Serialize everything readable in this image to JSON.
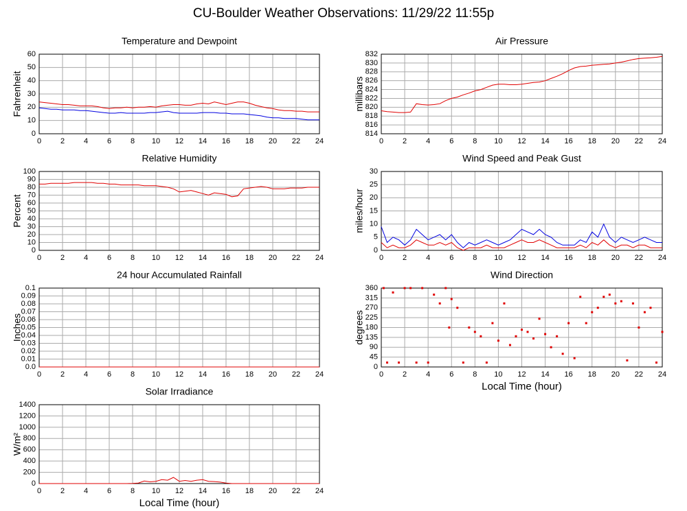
{
  "title": "CU-Boulder Weather Observations: 11/29/22 11:55p",
  "chart_data": [
    {
      "type": "line",
      "title": "Temperature and Dewpoint",
      "y_label": "Fahrenheit",
      "xlim": [
        0,
        24
      ],
      "xticks": [
        0,
        2,
        4,
        6,
        8,
        10,
        12,
        14,
        16,
        18,
        20,
        22,
        24
      ],
      "ylim": [
        0,
        60
      ],
      "yticks": [
        0,
        10,
        20,
        30,
        40,
        50,
        60
      ],
      "grid": true,
      "x": [
        0,
        0.5,
        1,
        1.5,
        2,
        2.5,
        3,
        3.5,
        4,
        4.5,
        5,
        5.5,
        6,
        6.5,
        7,
        7.5,
        8,
        8.5,
        9,
        9.5,
        10,
        10.5,
        11,
        11.5,
        12,
        12.5,
        13,
        13.5,
        14,
        14.5,
        15,
        15.5,
        16,
        16.5,
        17,
        17.5,
        18,
        18.5,
        19,
        19.5,
        20,
        20.5,
        21,
        21.5,
        22,
        22.5,
        23,
        23.5,
        24
      ],
      "series": [
        {
          "color": "#e00000",
          "values": [
            24,
            23.5,
            23,
            22.5,
            22,
            22,
            21.5,
            21,
            21,
            21,
            20.5,
            19.5,
            19,
            19.5,
            19.5,
            20,
            19.5,
            20,
            20,
            20.5,
            20,
            21,
            21.5,
            22,
            22,
            21.5,
            21.5,
            22.5,
            23,
            22.5,
            24,
            23,
            22,
            23,
            24,
            24,
            23,
            21.5,
            20.5,
            19.5,
            19,
            18,
            17.5,
            17.5,
            17,
            17,
            16.5,
            16.5,
            16.5
          ]
        },
        {
          "color": "#0000e0",
          "values": [
            19.5,
            19,
            18.5,
            18.5,
            18,
            18,
            18,
            17.5,
            17.5,
            17,
            16.5,
            16,
            15.5,
            15.5,
            16,
            15.5,
            15.5,
            15.5,
            15.5,
            16,
            16,
            16.5,
            17,
            16,
            15.5,
            15.5,
            15.5,
            15.5,
            16,
            16,
            16,
            15.5,
            15.5,
            15,
            15,
            15,
            14.5,
            14,
            13.5,
            12.5,
            12,
            12,
            11.5,
            11.5,
            11.5,
            11,
            10.5,
            10.5,
            10.5
          ]
        }
      ]
    },
    {
      "type": "line",
      "title": "Air Pressure",
      "y_label": "millibars",
      "xlim": [
        0,
        24
      ],
      "xticks": [
        0,
        2,
        4,
        6,
        8,
        10,
        12,
        14,
        16,
        18,
        20,
        22,
        24
      ],
      "ylim": [
        814,
        832
      ],
      "yticks": [
        814,
        816,
        818,
        820,
        822,
        824,
        826,
        828,
        830,
        832
      ],
      "grid": true,
      "x": [
        0,
        0.5,
        1,
        1.5,
        2,
        2.5,
        3,
        3.5,
        4,
        4.5,
        5,
        5.5,
        6,
        6.5,
        7,
        7.5,
        8,
        8.5,
        9,
        9.5,
        10,
        10.5,
        11,
        11.5,
        12,
        12.5,
        13,
        13.5,
        14,
        14.5,
        15,
        15.5,
        16,
        16.5,
        17,
        17.5,
        18,
        18.5,
        19,
        19.5,
        20,
        20.5,
        21,
        21.5,
        22,
        22.5,
        23,
        23.5,
        24
      ],
      "series": [
        {
          "color": "#e00000",
          "values": [
            819.2,
            819,
            818.9,
            818.8,
            818.8,
            818.9,
            820.8,
            820.6,
            820.5,
            820.6,
            820.8,
            821.5,
            822,
            822.3,
            822.8,
            823.2,
            823.7,
            824,
            824.5,
            825,
            825.2,
            825.2,
            825.1,
            825.1,
            825.2,
            825.4,
            825.6,
            825.7,
            826,
            826.5,
            827,
            827.6,
            828.3,
            828.9,
            829.2,
            829.3,
            829.5,
            829.6,
            829.7,
            829.8,
            830,
            830.2,
            830.5,
            830.8,
            831,
            831.1,
            831.2,
            831.3,
            831.5
          ]
        }
      ]
    },
    {
      "type": "line",
      "title": "Relative Humidity",
      "y_label": "Percent",
      "xlim": [
        0,
        24
      ],
      "xticks": [
        0,
        2,
        4,
        6,
        8,
        10,
        12,
        14,
        16,
        18,
        20,
        22,
        24
      ],
      "ylim": [
        0,
        100
      ],
      "yticks": [
        0,
        10,
        20,
        30,
        40,
        50,
        60,
        70,
        80,
        90,
        100
      ],
      "grid": true,
      "x": [
        0,
        0.5,
        1,
        1.5,
        2,
        2.5,
        3,
        3.5,
        4,
        4.5,
        5,
        5.5,
        6,
        6.5,
        7,
        7.5,
        8,
        8.5,
        9,
        9.5,
        10,
        10.5,
        11,
        11.5,
        12,
        12.5,
        13,
        13.5,
        14,
        14.5,
        15,
        15.5,
        16,
        16.5,
        17,
        17.5,
        18,
        18.5,
        19,
        19.5,
        20,
        20.5,
        21,
        21.5,
        22,
        22.5,
        23,
        23.5,
        24
      ],
      "series": [
        {
          "color": "#e00000",
          "values": [
            84,
            84,
            85,
            85,
            85,
            85,
            86,
            86,
            86,
            86,
            85,
            85,
            84,
            84,
            83,
            83,
            83,
            83,
            82,
            82,
            82,
            81,
            80,
            78,
            74,
            75,
            76,
            74,
            72,
            70,
            73,
            72,
            71,
            68,
            69,
            78,
            79,
            80,
            81,
            80,
            78,
            78,
            78,
            79,
            79,
            79,
            80,
            80,
            80
          ]
        }
      ]
    },
    {
      "type": "line",
      "title": "Wind Speed and Peak Gust",
      "y_label": "miles/hour",
      "xlim": [
        0,
        24
      ],
      "xticks": [
        0,
        2,
        4,
        6,
        8,
        10,
        12,
        14,
        16,
        18,
        20,
        22,
        24
      ],
      "ylim": [
        0,
        30
      ],
      "yticks": [
        0,
        5,
        10,
        15,
        20,
        25,
        30
      ],
      "grid": true,
      "x": [
        0,
        0.5,
        1,
        1.5,
        2,
        2.5,
        3,
        3.5,
        4,
        4.5,
        5,
        5.5,
        6,
        6.5,
        7,
        7.5,
        8,
        8.5,
        9,
        9.5,
        10,
        10.5,
        11,
        11.5,
        12,
        12.5,
        13,
        13.5,
        14,
        14.5,
        15,
        15.5,
        16,
        16.5,
        17,
        17.5,
        18,
        18.5,
        19,
        19.5,
        20,
        20.5,
        21,
        21.5,
        22,
        22.5,
        23,
        23.5,
        24
      ],
      "series": [
        {
          "color": "#0000e0",
          "values": [
            9,
            3,
            5,
            4,
            2,
            4,
            8,
            6,
            4,
            5,
            6,
            4,
            6,
            3,
            1,
            3,
            2,
            3,
            4,
            3,
            2,
            3,
            4,
            6,
            8,
            7,
            6,
            8,
            6,
            5,
            3,
            2,
            2,
            2,
            4,
            3,
            7,
            5,
            10,
            5,
            3,
            5,
            4,
            3,
            4,
            5,
            4,
            3,
            3
          ]
        },
        {
          "color": "#e00000",
          "values": [
            3,
            1,
            2,
            1,
            1,
            2,
            4,
            3,
            2,
            2,
            3,
            2,
            3,
            1,
            0,
            1,
            1,
            1,
            2,
            1,
            1,
            1,
            2,
            3,
            4,
            3,
            3,
            4,
            3,
            2,
            1,
            1,
            1,
            1,
            2,
            1,
            3,
            2,
            4,
            2,
            1,
            2,
            2,
            1,
            2,
            2,
            1,
            1,
            1
          ]
        }
      ]
    },
    {
      "type": "line",
      "title": "24 hour Accumulated Rainfall",
      "y_label": "Inches",
      "xlim": [
        0,
        24
      ],
      "xticks": [
        0,
        2,
        4,
        6,
        8,
        10,
        12,
        14,
        16,
        18,
        20,
        22,
        24
      ],
      "ylim": [
        0,
        0.1
      ],
      "yticks": [
        {
          "value": 0,
          "label": "0.0"
        },
        0.01,
        0.02,
        0.03,
        0.04,
        0.05,
        0.06,
        0.07,
        0.08,
        0.09,
        0.1
      ],
      "grid": true,
      "x": [
        0,
        24
      ],
      "series": [
        {
          "color": "#e00000",
          "values": [
            0,
            0
          ]
        }
      ]
    },
    {
      "type": "scatter",
      "title": "Wind Direction",
      "y_label": "degrees",
      "x_label": "Local Time (hour)",
      "xlim": [
        0,
        24
      ],
      "xticks": [
        0,
        2,
        4,
        6,
        8,
        10,
        12,
        14,
        16,
        18,
        20,
        22,
        24
      ],
      "ylim": [
        0,
        360
      ],
      "yticks": [
        0,
        45,
        90,
        135,
        180,
        225,
        270,
        315,
        360
      ],
      "grid": true,
      "x": [
        0.2,
        0.5,
        1,
        1.5,
        2,
        2.5,
        3,
        3.5,
        4,
        4.5,
        5,
        5.5,
        5.8,
        6,
        6.5,
        7,
        7.5,
        8,
        8.5,
        9,
        9.5,
        10,
        10.5,
        11,
        11.5,
        12,
        12.5,
        13,
        13.5,
        14,
        14.5,
        15,
        15.5,
        16,
        16.5,
        17,
        17.5,
        18,
        18.5,
        19,
        19.5,
        20,
        20.5,
        21,
        21.5,
        22,
        22.5,
        23,
        23.5,
        24
      ],
      "series": [
        {
          "color": "#e00000",
          "values": [
            360,
            20,
            340,
            20,
            360,
            360,
            20,
            360,
            20,
            330,
            290,
            360,
            180,
            310,
            270,
            20,
            180,
            160,
            140,
            20,
            200,
            120,
            290,
            100,
            140,
            170,
            160,
            130,
            220,
            150,
            90,
            140,
            60,
            200,
            40,
            320,
            200,
            250,
            270,
            320,
            330,
            290,
            300,
            30,
            290,
            180,
            250,
            270,
            20,
            160
          ]
        }
      ]
    },
    {
      "type": "line",
      "title": "Solar Irradiance",
      "y_label": "W/m²",
      "x_label": "Local Time (hour)",
      "xlim": [
        0,
        24
      ],
      "xticks": [
        0,
        2,
        4,
        6,
        8,
        10,
        12,
        14,
        16,
        18,
        20,
        22,
        24
      ],
      "ylim": [
        0,
        1400
      ],
      "yticks": [
        0,
        200,
        400,
        600,
        800,
        1000,
        1200,
        1400
      ],
      "grid": true,
      "x": [
        0,
        0.5,
        1,
        1.5,
        2,
        2.5,
        3,
        3.5,
        4,
        4.5,
        5,
        5.5,
        6,
        6.5,
        7,
        7.5,
        8,
        8.5,
        9,
        9.5,
        10,
        10.5,
        11,
        11.5,
        12,
        12.5,
        13,
        13.5,
        14,
        14.5,
        15,
        15.5,
        16,
        16.5,
        17,
        17.5,
        18,
        18.5,
        19,
        19.5,
        20,
        20.5,
        21,
        21.5,
        22,
        22.5,
        23,
        23.5,
        24
      ],
      "series": [
        {
          "color": "#e00000",
          "values": [
            0,
            0,
            0,
            0,
            0,
            0,
            0,
            0,
            0,
            0,
            0,
            0,
            0,
            0,
            0,
            0,
            3,
            10,
            45,
            30,
            40,
            70,
            60,
            110,
            40,
            55,
            40,
            60,
            70,
            40,
            35,
            25,
            10,
            0,
            0,
            0,
            0,
            0,
            0,
            0,
            0,
            0,
            0,
            0,
            0,
            0,
            0,
            0,
            0
          ]
        }
      ]
    }
  ]
}
